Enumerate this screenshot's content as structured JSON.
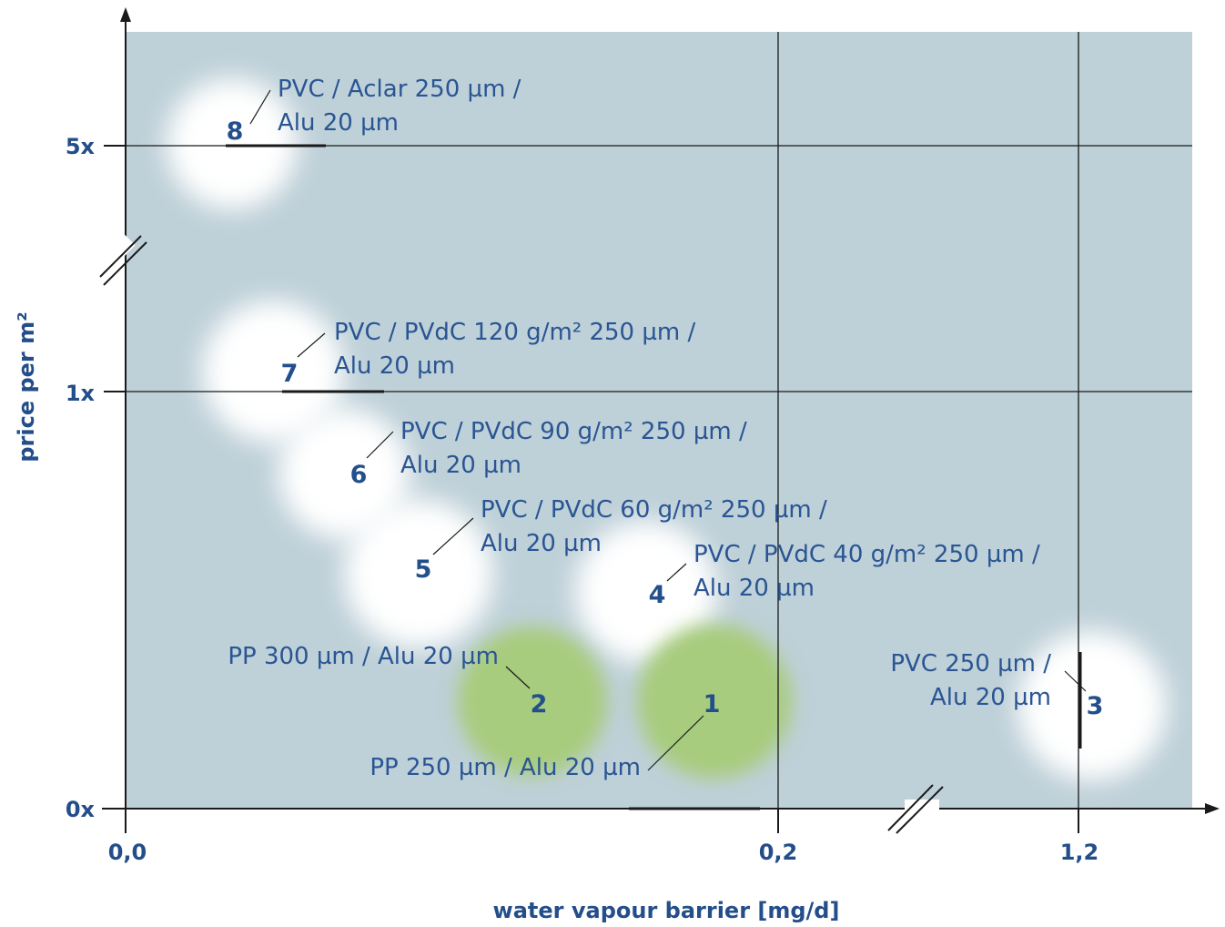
{
  "chart_data": {
    "type": "scatter",
    "xlabel": "water vapour barrier [mg/d]",
    "ylabel": "price per m²",
    "x_ticks": [
      "0,0",
      "0,2",
      "1,2"
    ],
    "y_ticks": [
      "0x",
      "1x",
      "5x"
    ],
    "axis_breaks": [
      "x",
      "y"
    ],
    "grid": true,
    "colors": {
      "background": "#bed0d8",
      "highlight": "#a7cc7d",
      "bubble": "#ffffff",
      "text": "#2a5593",
      "axis": "#1a1a1a"
    },
    "points": [
      {
        "id": "1",
        "label_lines": [
          "PP 250 µm / Alu 20 µm"
        ],
        "highlight": true
      },
      {
        "id": "2",
        "label_lines": [
          "PP 300 µm / Alu 20 µm"
        ],
        "highlight": true
      },
      {
        "id": "3",
        "label_lines": [
          "PVC 250 µm /",
          "Alu 20 µm"
        ],
        "highlight": false
      },
      {
        "id": "4",
        "label_lines": [
          "PVC / PVdC 40 g/m² 250 µm /",
          "Alu 20 µm"
        ],
        "highlight": false
      },
      {
        "id": "5",
        "label_lines": [
          "PVC / PVdC 60 g/m² 250 µm /",
          "Alu 20 µm"
        ],
        "highlight": false
      },
      {
        "id": "6",
        "label_lines": [
          "PVC / PVdC 90 g/m² 250 µm /",
          "Alu 20 µm"
        ],
        "highlight": false
      },
      {
        "id": "7",
        "label_lines": [
          "PVC / PVdC 120 g/m² 250 µm /",
          "Alu 20 µm"
        ],
        "highlight": false
      },
      {
        "id": "8",
        "label_lines": [
          "PVC / Aclar 250 µm /",
          "Alu 20 µm"
        ],
        "highlight": false
      }
    ]
  }
}
